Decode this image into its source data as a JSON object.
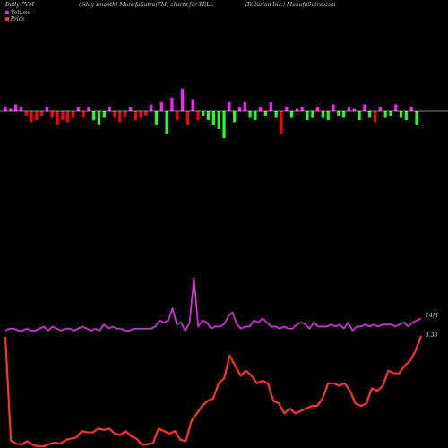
{
  "header": {
    "left": "Daily PVM",
    "center": "(5day smooth) MunafaSutra(TM) charts for TELL",
    "right": "(Tellurian Inc.) MunafaSutra.com"
  },
  "legend": {
    "volume_label": "Volume",
    "price_label": "Price",
    "volume_color": "#cc33cc",
    "price_color": "#ff3333"
  },
  "colors": {
    "up": "#ff22ff",
    "down_red": "#ff0000",
    "down_green": "#22ff22",
    "volume_line": "#cc33cc",
    "price_line": "#ff3333",
    "baseline": "#ffffff"
  },
  "chart_data": [
    {
      "type": "bar",
      "title": "",
      "description_source": "PVM bars above and below a zero baseline",
      "values": [
        2,
        1,
        3,
        2,
        -2,
        -5,
        -4,
        -2,
        2,
        -3,
        -6,
        -4,
        -5,
        -3,
        2,
        -3,
        2,
        -4,
        -6,
        -3,
        2,
        -3,
        -5,
        -3,
        2,
        -4,
        -3,
        -2,
        3,
        -6,
        4,
        -10,
        6,
        -4,
        10,
        -6,
        5,
        -4,
        -2,
        -4,
        -6,
        -8,
        -12,
        4,
        -5,
        2,
        4,
        -3,
        -4,
        2,
        -2,
        4,
        -3,
        -10,
        2,
        -3,
        1,
        2,
        -4,
        -3,
        2,
        -3,
        -4,
        3,
        -2,
        -3,
        2,
        1,
        -4,
        3,
        -3,
        -5,
        2,
        -3,
        -2,
        3,
        -3,
        -4,
        2,
        -6
      ],
      "colors": [
        "up",
        "up",
        "up",
        "up",
        "red",
        "red",
        "red",
        "red",
        "up",
        "red",
        "red",
        "red",
        "red",
        "red",
        "up",
        "red",
        "up",
        "green",
        "green",
        "green",
        "up",
        "red",
        "red",
        "red",
        "up",
        "red",
        "red",
        "red",
        "up",
        "green",
        "up",
        "green",
        "up",
        "red",
        "up",
        "red",
        "up",
        "red",
        "green",
        "green",
        "green",
        "green",
        "green",
        "up",
        "green",
        "up",
        "up",
        "green",
        "green",
        "up",
        "green",
        "up",
        "green",
        "red",
        "up",
        "green",
        "up",
        "up",
        "green",
        "green",
        "up",
        "green",
        "green",
        "up",
        "green",
        "green",
        "up",
        "up",
        "green",
        "up",
        "green",
        "red",
        "up",
        "green",
        "green",
        "up",
        "green",
        "green",
        "up",
        "green"
      ]
    },
    {
      "type": "line",
      "title": "",
      "series": [
        {
          "name": "Volume",
          "end_label": "14M",
          "values": [
            4,
            5,
            5,
            4,
            4,
            5,
            4,
            4,
            5,
            6,
            4,
            6,
            5,
            4,
            5,
            5,
            4,
            5,
            6,
            5,
            4,
            5,
            4,
            7,
            5,
            6,
            5,
            5,
            4,
            4,
            5,
            5,
            5,
            5,
            5,
            6,
            9,
            8,
            9,
            15,
            7,
            8,
            4,
            8,
            30,
            6,
            9,
            8,
            5,
            6,
            6,
            7,
            11,
            13,
            7,
            5,
            6,
            6,
            9,
            8,
            10,
            8,
            6,
            6,
            5,
            6,
            5,
            5,
            7,
            8,
            7,
            5,
            8,
            6,
            6,
            6,
            7,
            6,
            7,
            5,
            8,
            4,
            6,
            6,
            7,
            6,
            7,
            6,
            7,
            7,
            7,
            6,
            7,
            8,
            6,
            8,
            9,
            10
          ]
        },
        {
          "name": "Price",
          "end_label": "4.38",
          "values": [
            4.35,
            0.22,
            0.1,
            0.07,
            0.2,
            0.05,
            0.0,
            0.0,
            0.08,
            0.15,
            0.1,
            0.25,
            0.3,
            0.35,
            0.6,
            0.55,
            0.55,
            0.7,
            0.65,
            0.7,
            0.5,
            0.45,
            0.6,
            0.4,
            0.3,
            0.05,
            0.08,
            0.12,
            0.7,
            0.6,
            0.5,
            0.6,
            0.25,
            0.2,
            1.0,
            1.3,
            1.6,
            1.8,
            1.9,
            2.5,
            2.7,
            3.6,
            3.2,
            2.8,
            3.0,
            2.8,
            2.5,
            2.6,
            2.5,
            1.8,
            1.7,
            1.3,
            1.5,
            1.3,
            1.4,
            1.5,
            1.6,
            1.6,
            1.9,
            2.5,
            2.5,
            2.4,
            2.5,
            2.2,
            1.7,
            1.6,
            1.7,
            2.3,
            2.2,
            2.4,
            3.0,
            2.9,
            2.9,
            3.2,
            3.4,
            3.8,
            4.38
          ]
        }
      ]
    }
  ]
}
